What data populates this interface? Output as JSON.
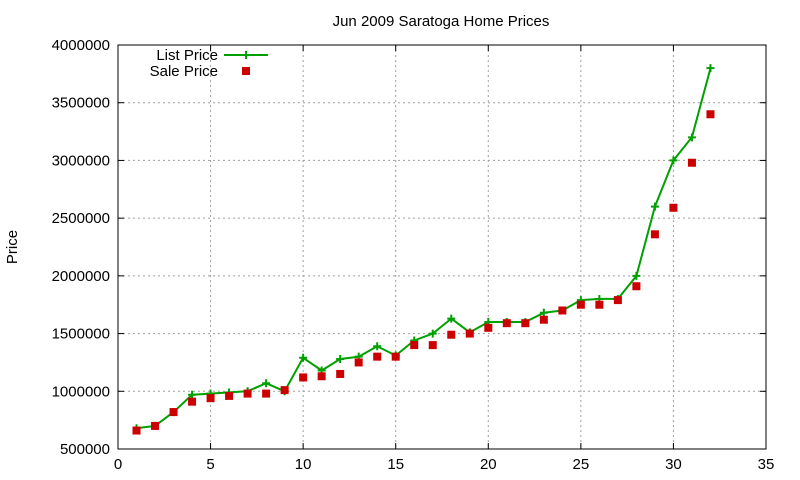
{
  "chart_data": {
    "type": "line",
    "title": "Jun 2009 Saratoga Home Prices",
    "xlabel": "",
    "ylabel": "Price",
    "xlim": [
      0,
      35
    ],
    "ylim": [
      500000,
      4000000
    ],
    "xticks": [
      0,
      5,
      10,
      15,
      20,
      25,
      30,
      35
    ],
    "yticks": [
      500000,
      1000000,
      1500000,
      2000000,
      2500000,
      3000000,
      3500000,
      4000000
    ],
    "grid": true,
    "legend_position": "top-left",
    "series": [
      {
        "name": "List Price",
        "style": "line-with-plus-markers",
        "color": "#00a000",
        "x": [
          1,
          2,
          3,
          4,
          5,
          6,
          7,
          8,
          9,
          10,
          11,
          12,
          13,
          14,
          15,
          16,
          17,
          18,
          19,
          20,
          21,
          22,
          23,
          24,
          25,
          26,
          27,
          28,
          29,
          30,
          31,
          32
        ],
        "values": [
          680000,
          700000,
          820000,
          970000,
          980000,
          990000,
          1000000,
          1070000,
          1000000,
          1290000,
          1180000,
          1280000,
          1300000,
          1390000,
          1310000,
          1440000,
          1500000,
          1630000,
          1510000,
          1600000,
          1600000,
          1600000,
          1680000,
          1700000,
          1790000,
          1800000,
          1800000,
          2000000,
          2600000,
          3000000,
          3200000,
          3800000
        ]
      },
      {
        "name": "Sale Price",
        "style": "square-markers",
        "color": "#cc0000",
        "x": [
          1,
          2,
          3,
          4,
          5,
          6,
          7,
          8,
          9,
          10,
          11,
          12,
          13,
          14,
          15,
          16,
          17,
          18,
          19,
          20,
          21,
          22,
          23,
          24,
          25,
          26,
          27,
          28,
          29,
          30,
          31,
          32
        ],
        "values": [
          660000,
          700000,
          820000,
          910000,
          940000,
          960000,
          980000,
          980000,
          1010000,
          1120000,
          1130000,
          1150000,
          1250000,
          1300000,
          1300000,
          1400000,
          1400000,
          1490000,
          1500000,
          1550000,
          1590000,
          1590000,
          1620000,
          1700000,
          1750000,
          1750000,
          1790000,
          1910000,
          2360000,
          2590000,
          2980000,
          3400000
        ]
      }
    ]
  }
}
